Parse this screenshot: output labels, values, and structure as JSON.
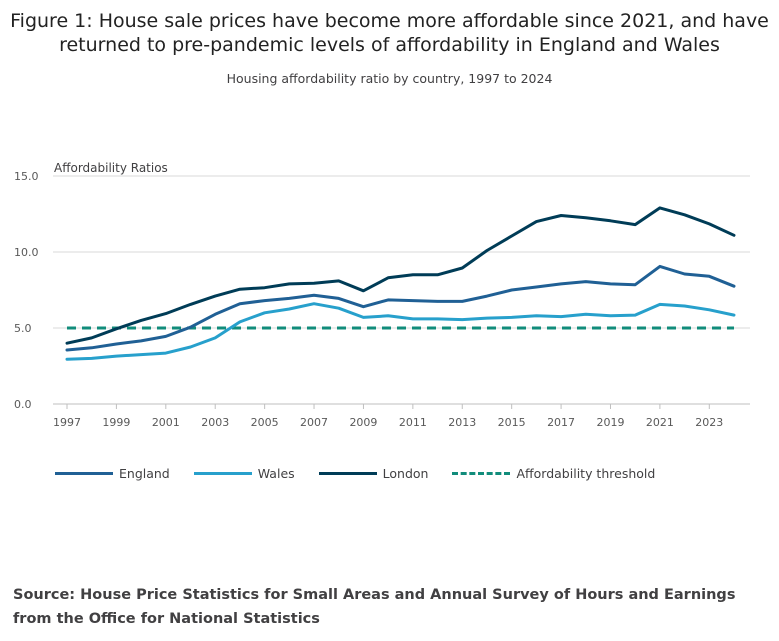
{
  "title": "Figure 1: House sale prices have become more affordable since 2021, and have returned to pre-pandemic levels of affordability in England and Wales",
  "subtitle": "Housing affordability ratio by country, 1997 to 2024",
  "source": "Source: House Price Statistics for Small Areas and Annual Survey of Hours and Earnings from the Office for National Statistics",
  "colors": {
    "england": "#206095",
    "wales": "#27a0cc",
    "london": "#003c57",
    "threshold": "#118c7b",
    "grid": "#d9d9d9",
    "axis": "#bfbfbf"
  },
  "chart_data": {
    "type": "line",
    "title": "Housing affordability ratio by country, 1997 to 2024",
    "xlabel": "",
    "ylabel": "Affordability Ratios",
    "xlim": [
      1997,
      2024
    ],
    "ylim": [
      0,
      15
    ],
    "y_ticks": [
      "0.0",
      "5.0",
      "10.0",
      "15.0"
    ],
    "x_ticks": [
      "1997",
      "1999",
      "2001",
      "2003",
      "2005",
      "2007",
      "2009",
      "2011",
      "2013",
      "2015",
      "2017",
      "2019",
      "2021",
      "2023"
    ],
    "grid": true,
    "legend_position": "bottom-left",
    "x": [
      1997,
      1998,
      1999,
      2000,
      2001,
      2002,
      2003,
      2004,
      2005,
      2006,
      2007,
      2008,
      2009,
      2010,
      2011,
      2012,
      2013,
      2014,
      2015,
      2016,
      2017,
      2018,
      2019,
      2020,
      2021,
      2022,
      2023,
      2024
    ],
    "series": [
      {
        "name": "England",
        "key": "england",
        "style": "solid",
        "values": [
          3.55,
          3.7,
          3.95,
          4.15,
          4.45,
          5.05,
          5.9,
          6.6,
          6.8,
          6.95,
          7.15,
          6.95,
          6.4,
          6.85,
          6.8,
          6.75,
          6.75,
          7.1,
          7.5,
          7.7,
          7.9,
          8.05,
          7.9,
          7.85,
          9.05,
          8.55,
          8.4,
          7.75
        ]
      },
      {
        "name": "Wales",
        "key": "wales",
        "style": "solid",
        "values": [
          2.95,
          3.0,
          3.15,
          3.25,
          3.35,
          3.75,
          4.35,
          5.4,
          6.0,
          6.25,
          6.6,
          6.3,
          5.7,
          5.8,
          5.6,
          5.6,
          5.55,
          5.65,
          5.7,
          5.8,
          5.75,
          5.9,
          5.8,
          5.85,
          6.55,
          6.45,
          6.2,
          5.85
        ]
      },
      {
        "name": "London",
        "key": "london",
        "style": "solid",
        "values": [
          4.0,
          4.35,
          4.95,
          5.5,
          5.95,
          6.55,
          7.1,
          7.55,
          7.65,
          7.9,
          7.95,
          8.1,
          7.45,
          8.3,
          8.5,
          8.5,
          8.95,
          10.1,
          11.05,
          12.0,
          12.4,
          12.25,
          12.05,
          11.8,
          12.9,
          12.45,
          11.85,
          11.1
        ]
      },
      {
        "name": "Affordability threshold",
        "key": "threshold",
        "style": "dashed",
        "values": [
          5,
          5,
          5,
          5,
          5,
          5,
          5,
          5,
          5,
          5,
          5,
          5,
          5,
          5,
          5,
          5,
          5,
          5,
          5,
          5,
          5,
          5,
          5,
          5,
          5,
          5,
          5,
          5
        ]
      }
    ]
  }
}
